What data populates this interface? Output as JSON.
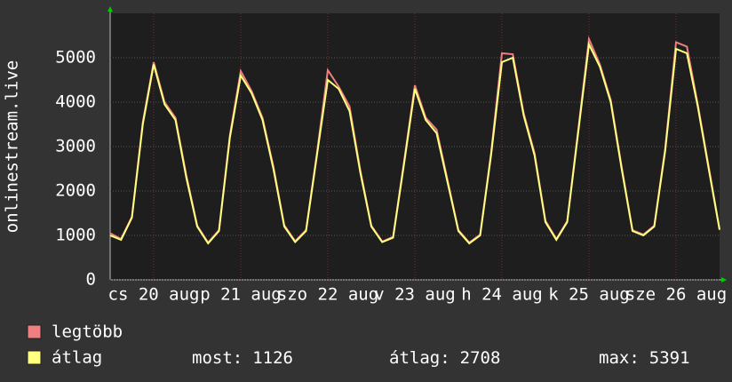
{
  "chart_data": {
    "type": "line",
    "y_label": "onlinestream.live",
    "x": [
      0,
      3,
      6,
      9,
      12,
      15,
      18,
      21,
      24,
      27,
      30,
      33,
      36,
      39,
      42,
      45,
      48,
      51,
      54,
      57,
      60,
      63,
      66,
      69,
      72,
      75,
      78,
      81,
      84,
      87,
      90,
      93,
      96,
      99,
      102,
      105,
      108,
      111,
      114,
      117,
      120,
      123,
      126,
      129,
      132,
      135,
      138,
      141,
      144,
      147,
      150,
      153,
      156,
      159,
      162,
      165,
      168
    ],
    "series": [
      {
        "name": "legtöbb",
        "color": "#f08080",
        "values": [
          1050,
          920,
          1420,
          3550,
          4900,
          4000,
          3650,
          2350,
          1220,
          840,
          1120,
          3250,
          4700,
          4250,
          3650,
          2550,
          1230,
          870,
          1120,
          2850,
          4720,
          4350,
          3900,
          2450,
          1220,
          860,
          970,
          2650,
          4380,
          3650,
          3380,
          2250,
          1120,
          840,
          1020,
          2850,
          5100,
          5080,
          3750,
          2850,
          1330,
          920,
          1320,
          3350,
          5420,
          4850,
          4050,
          2550,
          1120,
          1020,
          1220,
          2950,
          5350,
          5250,
          3950,
          2550,
          1140
        ]
      },
      {
        "name": "átlag",
        "color": "#ffff80",
        "values": [
          1000,
          900,
          1400,
          3500,
          4850,
          3950,
          3600,
          2300,
          1200,
          820,
          1100,
          3200,
          4600,
          4200,
          3600,
          2500,
          1200,
          850,
          1100,
          2800,
          4500,
          4300,
          3800,
          2400,
          1200,
          850,
          950,
          2600,
          4300,
          3600,
          3300,
          2200,
          1100,
          820,
          1000,
          2800,
          4900,
          5000,
          3700,
          2800,
          1300,
          900,
          1300,
          3300,
          5300,
          4800,
          4000,
          2500,
          1100,
          1000,
          1200,
          2900,
          5200,
          5100,
          3900,
          2500,
          1126
        ]
      }
    ],
    "xlim": [
      0,
      168
    ],
    "xticks": [
      {
        "value": 12,
        "label": "cs 20 aug"
      },
      {
        "value": 36,
        "label": "p 21 aug"
      },
      {
        "value": 60,
        "label": "szo 22 aug"
      },
      {
        "value": 84,
        "label": "v 23 aug"
      },
      {
        "value": 108,
        "label": "h 24 aug"
      },
      {
        "value": 132,
        "label": "k 25 aug"
      },
      {
        "value": 156,
        "label": "sze 26 aug"
      }
    ],
    "ylim": [
      0,
      6000
    ],
    "yticks": [
      0,
      1000,
      2000,
      3000,
      4000,
      5000
    ],
    "grid": true,
    "stats": [
      {
        "label": "most:",
        "value": 1126
      },
      {
        "label": "átlag:",
        "value": 2708
      },
      {
        "label": "max:",
        "value": 5391
      }
    ]
  }
}
